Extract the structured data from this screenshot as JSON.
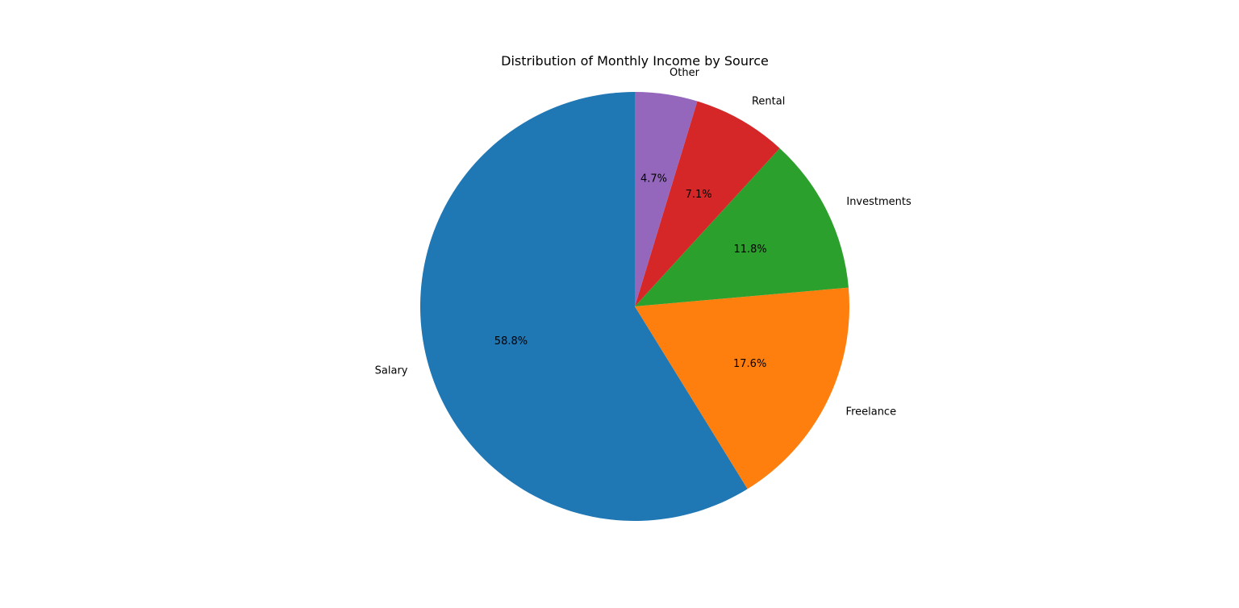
{
  "chart_data": {
    "type": "pie",
    "title": "Distribution of Monthly Income by Source",
    "slices": [
      {
        "label": "Salary",
        "percent_label": "58.8%",
        "value": 58.8,
        "color": "#1f77b4"
      },
      {
        "label": "Freelance",
        "percent_label": "17.6%",
        "value": 17.6,
        "color": "#ff7f0e"
      },
      {
        "label": "Investments",
        "percent_label": "11.8%",
        "value": 11.8,
        "color": "#2ca02c"
      },
      {
        "label": "Rental",
        "percent_label": "7.1%",
        "value": 7.1,
        "color": "#d62728"
      },
      {
        "label": "Other",
        "percent_label": "4.7%",
        "value": 4.7,
        "color": "#9467bd"
      }
    ],
    "start_angle": "top",
    "direction": "counterclockwise",
    "legend": "none"
  }
}
